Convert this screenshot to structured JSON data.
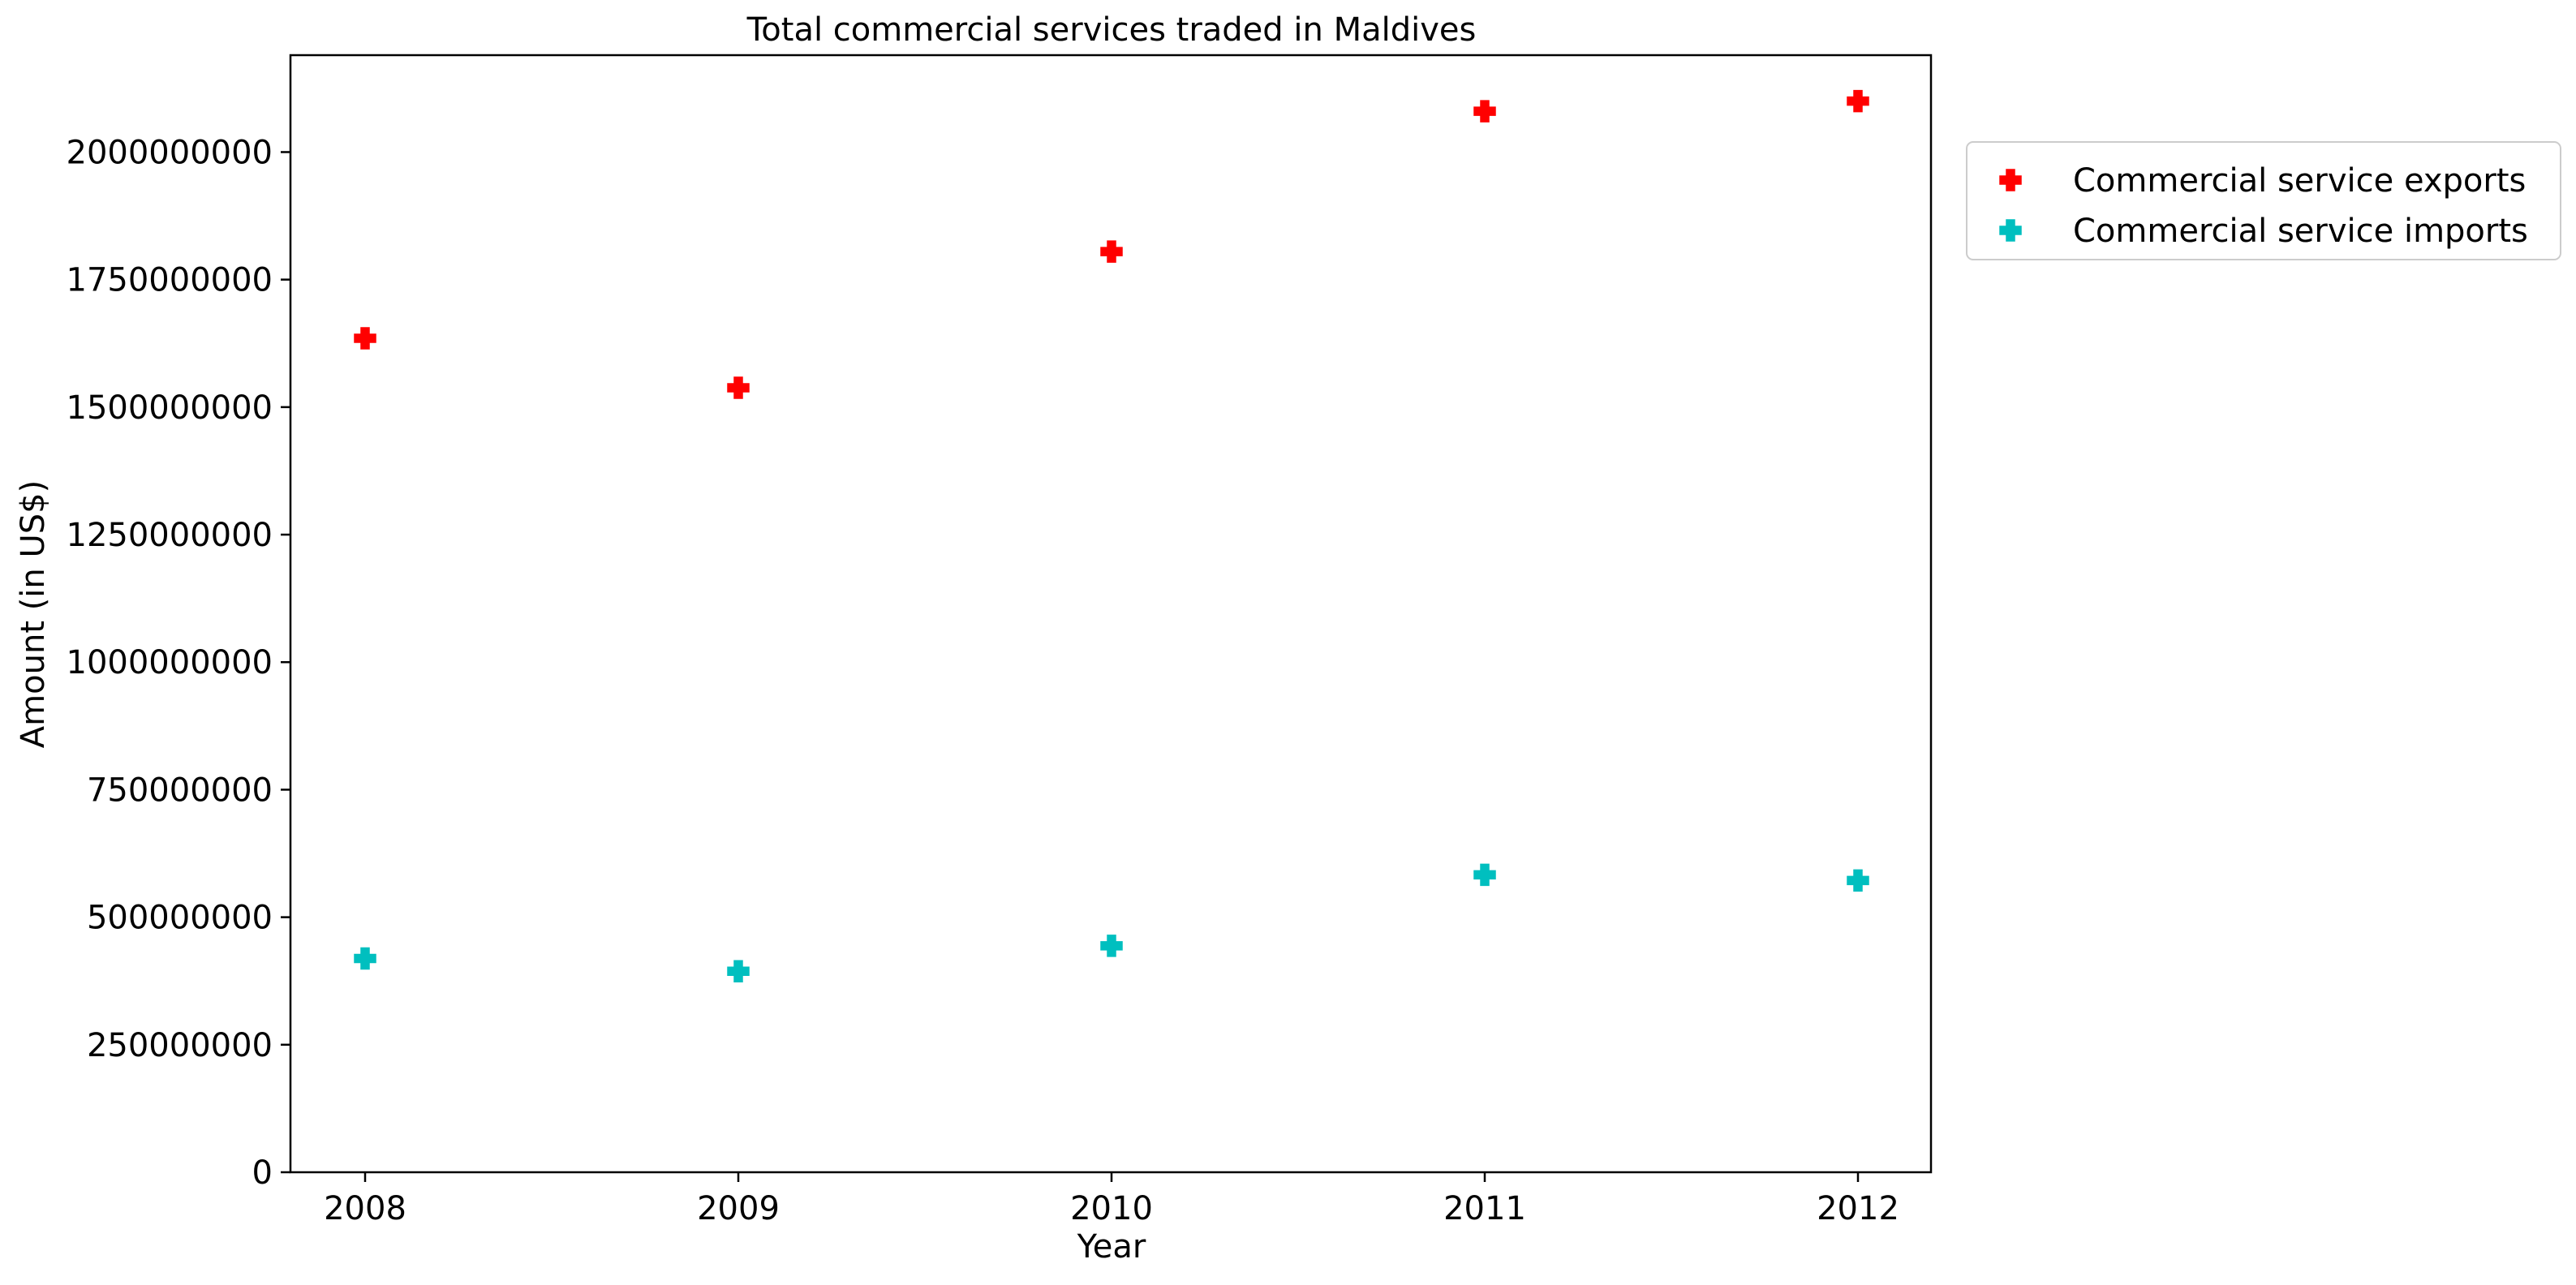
{
  "chart_data": {
    "type": "scatter",
    "title": "Total commercial services traded in Maldives",
    "xlabel": "Year",
    "ylabel": "Amount (in US$)",
    "x": [
      "2008",
      "2009",
      "2010",
      "2011",
      "2012"
    ],
    "ylim": [
      0,
      2190000000
    ],
    "yticks": [
      "0",
      "250000000",
      "500000000",
      "750000000",
      "1000000000",
      "1250000000",
      "1500000000",
      "1750000000",
      "2000000000"
    ],
    "grid": false,
    "legend_position": "outside-right-top",
    "series": [
      {
        "name": "Commercial service exports",
        "color": "#ff0000",
        "marker": "plus-filled",
        "values": [
          1635000000,
          1538000000,
          1805000000,
          2080000000,
          2100000000
        ]
      },
      {
        "name": "Commercial service imports",
        "color": "#00bfbf",
        "marker": "plus-filled",
        "values": [
          419000000,
          394000000,
          444000000,
          583000000,
          572000000
        ]
      }
    ]
  }
}
